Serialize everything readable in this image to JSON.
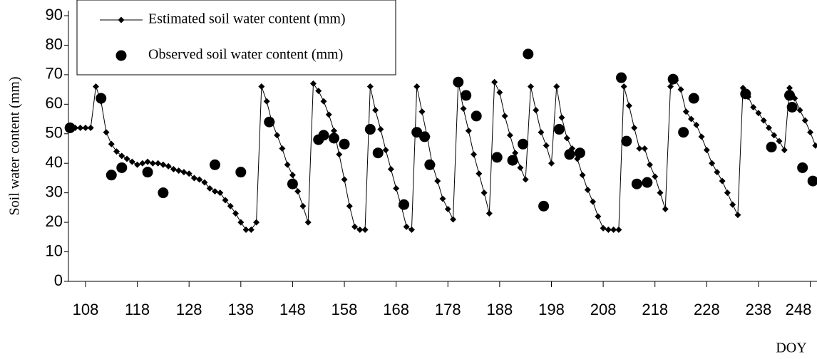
{
  "chart_data": {
    "type": "line",
    "y_label": "Soil water content (mm)",
    "x_label": "DOY",
    "xlim": [
      104.7,
      249.3
    ],
    "xticks": [
      108,
      118,
      128,
      138,
      148,
      158,
      168,
      178,
      188,
      198,
      208,
      218,
      228,
      238,
      248
    ],
    "ylim": [
      0,
      90
    ],
    "yticks": [
      0,
      10,
      20,
      30,
      40,
      50,
      60,
      70,
      80,
      90
    ],
    "series": [
      {
        "name": "Estimated soil water content (mm)",
        "type": "line",
        "color": "#000000",
        "x": [
          105,
          106,
          107,
          108,
          109,
          110,
          111,
          112,
          113,
          114,
          115,
          116,
          117,
          118,
          119,
          120,
          121,
          122,
          123,
          124,
          125,
          126,
          127,
          128,
          129,
          130,
          131,
          132,
          133,
          134,
          135,
          136,
          137,
          138,
          139,
          140,
          141,
          142,
          143,
          144,
          145,
          146,
          147,
          148,
          149,
          150,
          151,
          152,
          153,
          154,
          155,
          156,
          157,
          158,
          159,
          160,
          161,
          162,
          163,
          164,
          165,
          166,
          167,
          168,
          169,
          170,
          171,
          172,
          173,
          174,
          175,
          176,
          177,
          178,
          179,
          180,
          181,
          182,
          183,
          184,
          185,
          186,
          187,
          188,
          189,
          190,
          191,
          192,
          193,
          194,
          195,
          196,
          197,
          198,
          199,
          200,
          201,
          202,
          203,
          204,
          205,
          206,
          207,
          208,
          209,
          210,
          211,
          212,
          213,
          214,
          215,
          216,
          217,
          218,
          219,
          220,
          221,
          222,
          223,
          224,
          225,
          226,
          227,
          228,
          229,
          230,
          231,
          232,
          233,
          234,
          235,
          236,
          237,
          238,
          239,
          240,
          241,
          242,
          243,
          244,
          245,
          246,
          247,
          248,
          249
        ],
        "values": [
          52,
          52,
          52,
          52,
          52,
          66,
          61,
          50.5,
          46.5,
          44,
          42.5,
          41.5,
          40.5,
          39.5,
          40,
          40.5,
          40,
          40,
          39.5,
          39,
          38,
          37.5,
          37,
          36.5,
          35,
          34.5,
          33.5,
          31.5,
          30.5,
          30,
          27.5,
          25.5,
          23,
          20,
          17.5,
          17.5,
          20,
          66,
          61,
          54,
          49.5,
          45,
          39.5,
          36,
          30.5,
          25.5,
          20,
          67,
          64.5,
          61,
          56.5,
          51,
          43,
          34.5,
          25.5,
          18.5,
          17.5,
          17.5,
          66,
          58,
          51.5,
          44.5,
          38,
          31.5,
          25.5,
          18.5,
          17.5,
          66,
          57.5,
          49,
          39.5,
          34,
          28,
          24.5,
          21,
          67.5,
          58.5,
          51,
          43,
          36.5,
          30,
          23,
          67.5,
          64,
          56,
          49.5,
          43.5,
          38.5,
          34.5,
          66,
          58,
          50.5,
          46,
          40,
          66,
          55.5,
          48.5,
          45,
          41.5,
          36,
          31,
          27,
          22,
          18,
          17.5,
          17.5,
          17.5,
          66,
          59.5,
          52,
          45,
          45,
          39.5,
          35.5,
          30,
          24.5,
          66,
          68,
          65,
          57.5,
          55,
          53,
          49,
          44.5,
          40,
          37,
          34,
          30,
          26,
          22.5,
          65.5,
          62.5,
          59,
          57,
          54.5,
          52,
          49.5,
          47.5,
          44.5,
          65.5,
          62,
          58,
          54.5,
          50.5,
          46
        ]
      },
      {
        "name": "Observed soil water content (mm)",
        "type": "scatter",
        "color": "#000000",
        "x": [
          105,
          111,
          113,
          115,
          120,
          123,
          133,
          138,
          143.5,
          148,
          153,
          154,
          156,
          158,
          163,
          164.5,
          169.5,
          172,
          173.5,
          174.5,
          180,
          181.5,
          183.5,
          187.5,
          190.5,
          192.5,
          193.5,
          196.5,
          199.5,
          201.5,
          203.5,
          211.5,
          212.5,
          214.5,
          216.5,
          221.5,
          223.5,
          225.5,
          235.5,
          240.5,
          244,
          244.5,
          246.5,
          248.5
        ],
        "values": [
          52,
          62,
          36,
          38.5,
          37,
          30,
          39.5,
          37,
          54,
          33,
          48,
          49.5,
          48.5,
          46.5,
          51.5,
          43.5,
          26,
          50.5,
          49,
          39.5,
          67.5,
          63,
          56,
          42,
          41,
          46.5,
          77,
          25.5,
          51.5,
          43,
          43.5,
          69,
          47.5,
          33,
          33.5,
          68.5,
          50.5,
          62,
          63.5,
          45.5,
          63,
          59,
          38.5,
          34
        ]
      }
    ]
  }
}
